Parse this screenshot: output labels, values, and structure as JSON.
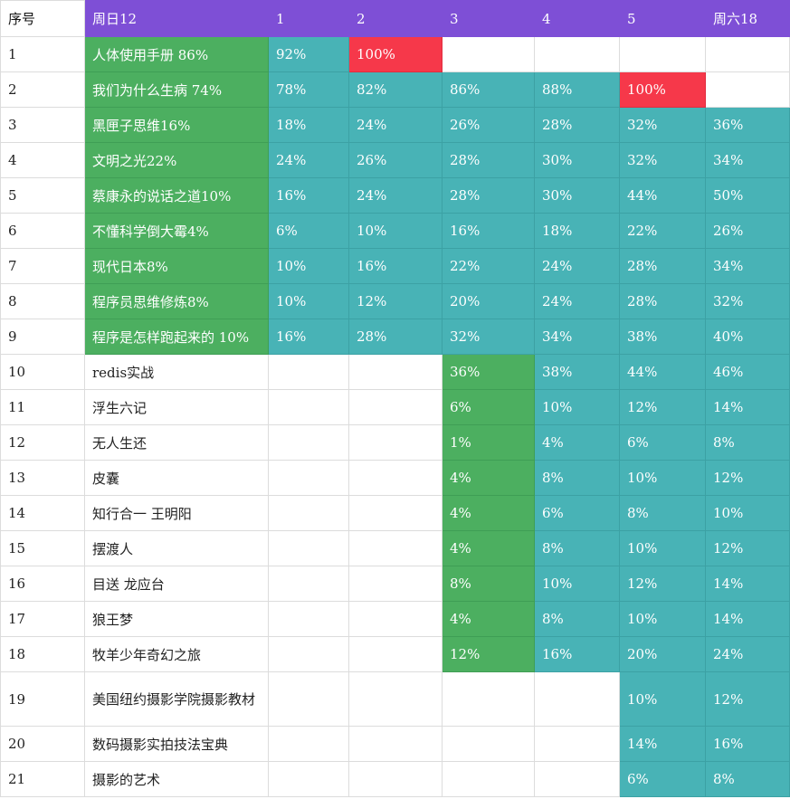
{
  "columns": [
    "序号",
    "周日12",
    "1",
    "2",
    "3",
    "4",
    "5",
    "周六18"
  ],
  "colors": {
    "header": "#7e4fd6",
    "green": "#4caf60",
    "teal": "#48b3b6",
    "red": "#f6384a"
  },
  "rows": [
    {
      "idx": "1",
      "cells": [
        {
          "text": "人体使用手册 86%",
          "color": "green"
        },
        {
          "text": "92%",
          "color": "teal"
        },
        {
          "text": "100%",
          "color": "red"
        },
        {
          "text": "",
          "color": ""
        },
        {
          "text": "",
          "color": ""
        },
        {
          "text": "",
          "color": ""
        },
        {
          "text": "",
          "color": ""
        }
      ]
    },
    {
      "idx": "2",
      "cells": [
        {
          "text": "我们为什么生病 74%",
          "color": "green"
        },
        {
          "text": "78%",
          "color": "teal"
        },
        {
          "text": "82%",
          "color": "teal"
        },
        {
          "text": "86%",
          "color": "teal"
        },
        {
          "text": "88%",
          "color": "teal"
        },
        {
          "text": "100%",
          "color": "red"
        },
        {
          "text": "",
          "color": ""
        }
      ]
    },
    {
      "idx": "3",
      "cells": [
        {
          "text": "黑匣子思维16%",
          "color": "green"
        },
        {
          "text": "18%",
          "color": "teal"
        },
        {
          "text": "24%",
          "color": "teal"
        },
        {
          "text": "26%",
          "color": "teal"
        },
        {
          "text": "28%",
          "color": "teal"
        },
        {
          "text": "32%",
          "color": "teal"
        },
        {
          "text": "36%",
          "color": "teal"
        }
      ]
    },
    {
      "idx": "4",
      "cells": [
        {
          "text": "文明之光22%",
          "color": "green"
        },
        {
          "text": "24%",
          "color": "teal"
        },
        {
          "text": "26%",
          "color": "teal"
        },
        {
          "text": "28%",
          "color": "teal"
        },
        {
          "text": "30%",
          "color": "teal"
        },
        {
          "text": "32%",
          "color": "teal"
        },
        {
          "text": "34%",
          "color": "teal"
        }
      ]
    },
    {
      "idx": "5",
      "cells": [
        {
          "text": "蔡康永的说话之道10%",
          "color": "green"
        },
        {
          "text": "16%",
          "color": "teal"
        },
        {
          "text": "24%",
          "color": "teal"
        },
        {
          "text": "28%",
          "color": "teal"
        },
        {
          "text": "30%",
          "color": "teal"
        },
        {
          "text": "44%",
          "color": "teal"
        },
        {
          "text": "50%",
          "color": "teal"
        }
      ]
    },
    {
      "idx": "6",
      "cells": [
        {
          "text": "不懂科学倒大霉4%",
          "color": "green"
        },
        {
          "text": "6%",
          "color": "teal"
        },
        {
          "text": "10%",
          "color": "teal"
        },
        {
          "text": "16%",
          "color": "teal"
        },
        {
          "text": "18%",
          "color": "teal"
        },
        {
          "text": "22%",
          "color": "teal"
        },
        {
          "text": "26%",
          "color": "teal"
        }
      ]
    },
    {
      "idx": "7",
      "cells": [
        {
          "text": "现代日本8%",
          "color": "green"
        },
        {
          "text": "10%",
          "color": "teal"
        },
        {
          "text": "16%",
          "color": "teal"
        },
        {
          "text": "22%",
          "color": "teal"
        },
        {
          "text": "24%",
          "color": "teal"
        },
        {
          "text": "28%",
          "color": "teal"
        },
        {
          "text": "34%",
          "color": "teal"
        }
      ]
    },
    {
      "idx": "8",
      "cells": [
        {
          "text": "程序员思维修炼8%",
          "color": "green"
        },
        {
          "text": "10%",
          "color": "teal"
        },
        {
          "text": "12%",
          "color": "teal"
        },
        {
          "text": "20%",
          "color": "teal"
        },
        {
          "text": "24%",
          "color": "teal"
        },
        {
          "text": "28%",
          "color": "teal"
        },
        {
          "text": "32%",
          "color": "teal"
        }
      ]
    },
    {
      "idx": "9",
      "cells": [
        {
          "text": "程序是怎样跑起来的 10%",
          "color": "green"
        },
        {
          "text": "16%",
          "color": "teal"
        },
        {
          "text": "28%",
          "color": "teal"
        },
        {
          "text": "32%",
          "color": "teal"
        },
        {
          "text": "34%",
          "color": "teal"
        },
        {
          "text": "38%",
          "color": "teal"
        },
        {
          "text": "40%",
          "color": "teal"
        }
      ]
    },
    {
      "idx": "10",
      "cells": [
        {
          "text": "redis实战",
          "color": ""
        },
        {
          "text": "",
          "color": ""
        },
        {
          "text": "",
          "color": ""
        },
        {
          "text": "36%",
          "color": "green"
        },
        {
          "text": "38%",
          "color": "teal"
        },
        {
          "text": "44%",
          "color": "teal"
        },
        {
          "text": "46%",
          "color": "teal"
        }
      ]
    },
    {
      "idx": "11",
      "cells": [
        {
          "text": "浮生六记",
          "color": ""
        },
        {
          "text": "",
          "color": ""
        },
        {
          "text": "",
          "color": ""
        },
        {
          "text": "6%",
          "color": "green"
        },
        {
          "text": "10%",
          "color": "teal"
        },
        {
          "text": "12%",
          "color": "teal"
        },
        {
          "text": "14%",
          "color": "teal"
        }
      ]
    },
    {
      "idx": "12",
      "cells": [
        {
          "text": "无人生还",
          "color": ""
        },
        {
          "text": "",
          "color": ""
        },
        {
          "text": "",
          "color": ""
        },
        {
          "text": "1%",
          "color": "green"
        },
        {
          "text": "4%",
          "color": "teal"
        },
        {
          "text": "6%",
          "color": "teal"
        },
        {
          "text": "8%",
          "color": "teal"
        }
      ]
    },
    {
      "idx": "13",
      "cells": [
        {
          "text": "皮囊",
          "color": ""
        },
        {
          "text": "",
          "color": ""
        },
        {
          "text": "",
          "color": ""
        },
        {
          "text": "4%",
          "color": "green"
        },
        {
          "text": "8%",
          "color": "teal"
        },
        {
          "text": "10%",
          "color": "teal"
        },
        {
          "text": "12%",
          "color": "teal"
        }
      ]
    },
    {
      "idx": "14",
      "cells": [
        {
          "text": "知行合一 王明阳",
          "color": ""
        },
        {
          "text": "",
          "color": ""
        },
        {
          "text": "",
          "color": ""
        },
        {
          "text": "4%",
          "color": "green"
        },
        {
          "text": "6%",
          "color": "teal"
        },
        {
          "text": "8%",
          "color": "teal"
        },
        {
          "text": "10%",
          "color": "teal"
        }
      ]
    },
    {
      "idx": "15",
      "cells": [
        {
          "text": "摆渡人",
          "color": ""
        },
        {
          "text": "",
          "color": ""
        },
        {
          "text": "",
          "color": ""
        },
        {
          "text": "4%",
          "color": "green"
        },
        {
          "text": "8%",
          "color": "teal"
        },
        {
          "text": "10%",
          "color": "teal"
        },
        {
          "text": "12%",
          "color": "teal"
        }
      ]
    },
    {
      "idx": "16",
      "cells": [
        {
          "text": "目送 龙应台",
          "color": ""
        },
        {
          "text": "",
          "color": ""
        },
        {
          "text": "",
          "color": ""
        },
        {
          "text": "8%",
          "color": "green"
        },
        {
          "text": "10%",
          "color": "teal"
        },
        {
          "text": "12%",
          "color": "teal"
        },
        {
          "text": "14%",
          "color": "teal"
        }
      ]
    },
    {
      "idx": "17",
      "cells": [
        {
          "text": "狼王梦",
          "color": ""
        },
        {
          "text": "",
          "color": ""
        },
        {
          "text": "",
          "color": ""
        },
        {
          "text": "4%",
          "color": "green"
        },
        {
          "text": "8%",
          "color": "teal"
        },
        {
          "text": "10%",
          "color": "teal"
        },
        {
          "text": "14%",
          "color": "teal"
        }
      ]
    },
    {
      "idx": "18",
      "cells": [
        {
          "text": "牧羊少年奇幻之旅",
          "color": ""
        },
        {
          "text": "",
          "color": ""
        },
        {
          "text": "",
          "color": ""
        },
        {
          "text": "12%",
          "color": "green"
        },
        {
          "text": "16%",
          "color": "teal"
        },
        {
          "text": "20%",
          "color": "teal"
        },
        {
          "text": "24%",
          "color": "teal"
        }
      ]
    },
    {
      "idx": "19",
      "tall": true,
      "cells": [
        {
          "text": "美国纽约摄影学院摄影教材",
          "color": ""
        },
        {
          "text": "",
          "color": ""
        },
        {
          "text": "",
          "color": ""
        },
        {
          "text": "",
          "color": ""
        },
        {
          "text": "",
          "color": ""
        },
        {
          "text": "10%",
          "color": "teal"
        },
        {
          "text": "12%",
          "color": "teal"
        }
      ]
    },
    {
      "idx": "20",
      "cells": [
        {
          "text": "数码摄影实拍技法宝典",
          "color": ""
        },
        {
          "text": "",
          "color": ""
        },
        {
          "text": "",
          "color": ""
        },
        {
          "text": "",
          "color": ""
        },
        {
          "text": "",
          "color": ""
        },
        {
          "text": "14%",
          "color": "teal"
        },
        {
          "text": "16%",
          "color": "teal"
        }
      ]
    },
    {
      "idx": "21",
      "cells": [
        {
          "text": "摄影的艺术",
          "color": ""
        },
        {
          "text": "",
          "color": ""
        },
        {
          "text": "",
          "color": ""
        },
        {
          "text": "",
          "color": ""
        },
        {
          "text": "",
          "color": ""
        },
        {
          "text": "6%",
          "color": "teal"
        },
        {
          "text": "8%",
          "color": "teal"
        }
      ]
    }
  ]
}
